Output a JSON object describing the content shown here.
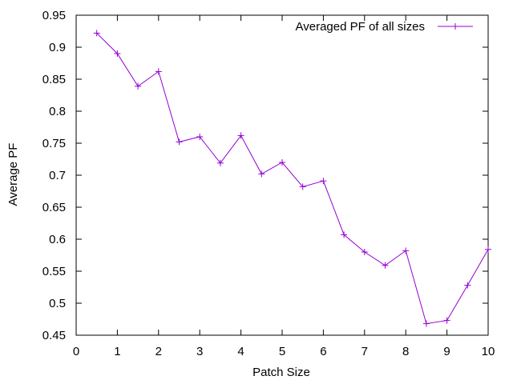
{
  "chart_data": {
    "type": "line",
    "title": "",
    "xlabel": "Patch Size",
    "ylabel": "Average PF",
    "xlim": [
      0,
      10
    ],
    "ylim": [
      0.45,
      0.95
    ],
    "xticks": [
      0,
      1,
      2,
      3,
      4,
      5,
      6,
      7,
      8,
      9,
      10
    ],
    "yticks": [
      0.45,
      0.5,
      0.55,
      0.6,
      0.65,
      0.7,
      0.75,
      0.8,
      0.85,
      0.9,
      0.95
    ],
    "grid": false,
    "legend_position": "top-right",
    "series": [
      {
        "name": "Averaged PF of all sizes",
        "color": "#9400d3",
        "marker": "plus",
        "x": [
          0.5,
          1,
          1.5,
          2,
          2.5,
          3,
          3.5,
          4,
          4.5,
          5,
          5.5,
          6,
          6.5,
          7,
          7.5,
          8,
          8.5,
          9,
          9.5,
          10
        ],
        "y": [
          0.922,
          0.89,
          0.839,
          0.862,
          0.752,
          0.76,
          0.719,
          0.762,
          0.702,
          0.72,
          0.682,
          0.691,
          0.607,
          0.58,
          0.559,
          0.582,
          0.468,
          0.473,
          0.528,
          0.584
        ]
      }
    ]
  }
}
